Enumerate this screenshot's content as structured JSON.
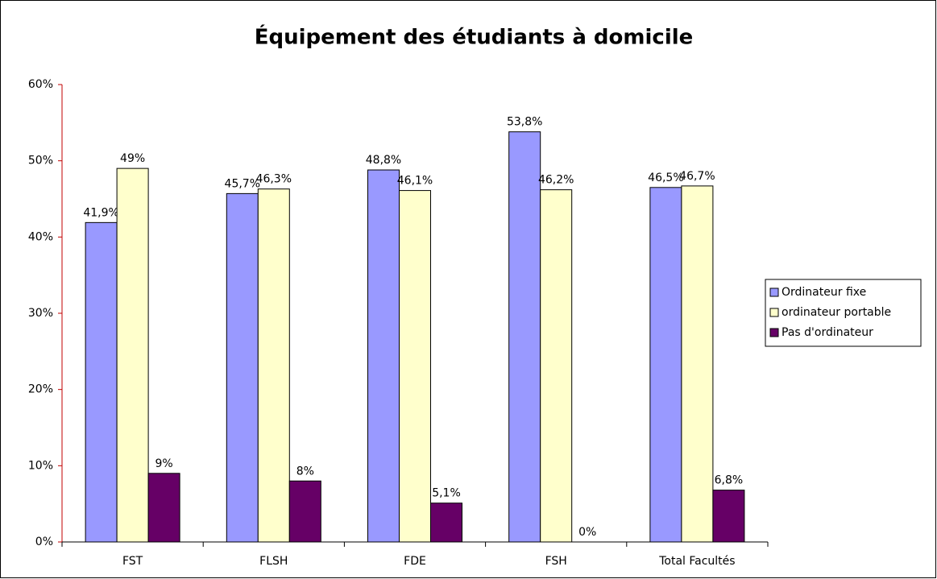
{
  "chart_data": {
    "type": "bar",
    "title": "Équipement des étudiants à domicile",
    "categories": [
      "FST",
      "FLSH",
      "FDE",
      "FSH",
      "Total Facultés"
    ],
    "series": [
      {
        "name": "Ordinateur fixe",
        "color": "#9999ff",
        "values": [
          41.9,
          45.7,
          48.8,
          53.8,
          46.5
        ],
        "value_labels": [
          "41,9%",
          "45,7%",
          "48,8%",
          "53,8%",
          "46,5%"
        ]
      },
      {
        "name": "ordinateur portable",
        "color": "#ffffcc",
        "values": [
          49,
          46.3,
          46.1,
          46.2,
          46.7
        ],
        "value_labels": [
          "49%",
          "46,3%",
          "46,1%",
          "46,2%",
          "46,7%"
        ]
      },
      {
        "name": "Pas d'ordinateur",
        "color": "#660066",
        "values": [
          9,
          8,
          5.1,
          0,
          6.8
        ],
        "value_labels": [
          "9%",
          "8%",
          "5,1%",
          "0%",
          "6,8%"
        ]
      }
    ],
    "ylim": [
      0,
      60
    ],
    "yticks": [
      {
        "value": 0,
        "label": "0%"
      },
      {
        "value": 10,
        "label": "10%"
      },
      {
        "value": 20,
        "label": "20%"
      },
      {
        "value": 30,
        "label": "30%"
      },
      {
        "value": 40,
        "label": "40%"
      },
      {
        "value": 50,
        "label": "50%"
      },
      {
        "value": 60,
        "label": "60%"
      }
    ],
    "legend": "right"
  }
}
